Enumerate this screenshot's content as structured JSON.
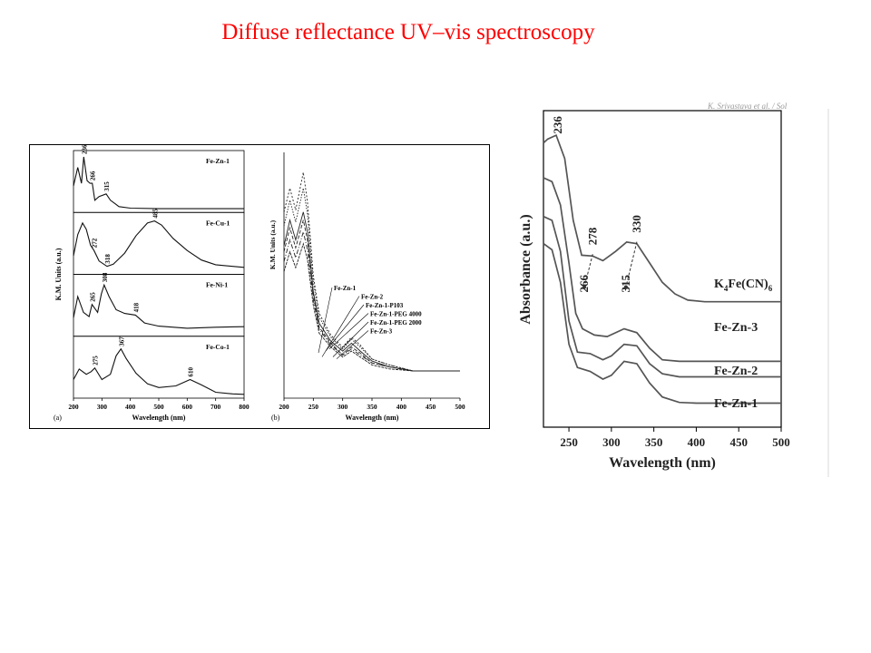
{
  "slide": {
    "title": "Diffuse reflectance UV–vis spectroscopy"
  },
  "right_header_fragment": "K. Srivastava et al. / Sol",
  "chart_data": [
    {
      "type": "line",
      "panel": "(a)",
      "xlabel": "Wavelength (nm)",
      "ylabel": "K.M. Units (a.u.)",
      "xlim": [
        200,
        800
      ],
      "xticks": [
        200,
        300,
        400,
        500,
        600,
        700,
        800
      ],
      "grid": false,
      "subplots": [
        {
          "name": "Fe-Zn-1",
          "x": [
            200,
            215,
            228,
            236,
            248,
            258,
            266,
            275,
            290,
            315,
            330,
            360,
            400,
            500,
            600,
            700,
            800
          ],
          "y": [
            0.45,
            0.8,
            0.5,
            1.0,
            0.55,
            0.5,
            0.5,
            0.18,
            0.25,
            0.3,
            0.18,
            0.06,
            0.03,
            0.02,
            0.02,
            0.02,
            0.02
          ],
          "peaks": [
            236,
            266,
            315
          ]
        },
        {
          "name": "Fe-Cu-1",
          "x": [
            200,
            215,
            232,
            245,
            260,
            272,
            290,
            318,
            340,
            380,
            420,
            460,
            485,
            510,
            550,
            600,
            650,
            700,
            760,
            800
          ],
          "y": [
            0.3,
            0.7,
            0.92,
            0.8,
            0.5,
            0.4,
            0.2,
            0.1,
            0.14,
            0.35,
            0.68,
            0.92,
            0.96,
            0.88,
            0.63,
            0.4,
            0.22,
            0.13,
            0.1,
            0.08
          ],
          "peaks": [
            272,
            318,
            485
          ]
        },
        {
          "name": "Fe-Ni-1",
          "x": [
            200,
            215,
            235,
            255,
            265,
            285,
            298,
            308,
            325,
            350,
            380,
            418,
            450,
            500,
            600,
            700,
            800
          ],
          "y": [
            0.3,
            0.7,
            0.4,
            0.32,
            0.55,
            0.4,
            0.75,
            0.92,
            0.7,
            0.45,
            0.38,
            0.35,
            0.2,
            0.14,
            0.1,
            0.12,
            0.13
          ],
          "peaks": [
            265,
            308,
            418
          ]
        },
        {
          "name": "Fe-Co-1",
          "x": [
            200,
            220,
            245,
            262,
            275,
            300,
            330,
            350,
            367,
            385,
            420,
            460,
            500,
            560,
            610,
            650,
            700,
            760,
            800
          ],
          "y": [
            0.3,
            0.5,
            0.4,
            0.45,
            0.52,
            0.3,
            0.4,
            0.75,
            0.88,
            0.7,
            0.42,
            0.22,
            0.15,
            0.18,
            0.3,
            0.2,
            0.06,
            0.03,
            0.02
          ],
          "peaks": [
            275,
            367,
            610
          ]
        }
      ]
    },
    {
      "type": "line",
      "panel": "(b)",
      "xlabel": "Wavelength (nm)",
      "ylabel": "K.M. Units (a.u.)",
      "xlim": [
        200,
        500
      ],
      "xticks": [
        200,
        250,
        300,
        350,
        400,
        450,
        500
      ],
      "grid": false,
      "series": [
        {
          "name": "Fe-Zn-1",
          "x": [
            200,
            210,
            220,
            233,
            240,
            250,
            260,
            280,
            300,
            315,
            330,
            350,
            380,
            420,
            500
          ],
          "y": [
            0.63,
            0.76,
            0.66,
            0.8,
            0.7,
            0.4,
            0.24,
            0.15,
            0.1,
            0.14,
            0.1,
            0.05,
            0.02,
            0.0,
            0.0
          ]
        },
        {
          "name": "Fe-Zn-2",
          "x": [
            200,
            210,
            220,
            233,
            240,
            250,
            260,
            280,
            300,
            315,
            330,
            350,
            380,
            420,
            500
          ],
          "y": [
            0.6,
            0.72,
            0.62,
            0.76,
            0.66,
            0.38,
            0.22,
            0.14,
            0.08,
            0.12,
            0.09,
            0.04,
            0.02,
            0.0,
            0.0
          ]
        },
        {
          "name": "Fe-Zn-1-P103",
          "x": [
            200,
            210,
            220,
            233,
            240,
            250,
            260,
            280,
            300,
            315,
            330,
            350,
            380,
            420,
            500
          ],
          "y": [
            0.73,
            0.86,
            0.75,
            0.92,
            0.79,
            0.45,
            0.27,
            0.17,
            0.11,
            0.16,
            0.12,
            0.06,
            0.03,
            0.0,
            0.0
          ]
        },
        {
          "name": "Fe-Zn-1-PEG 4000",
          "x": [
            200,
            210,
            220,
            233,
            240,
            250,
            260,
            280,
            300,
            315,
            330,
            350,
            380,
            420,
            500
          ],
          "y": [
            0.8,
            0.92,
            0.81,
            1.0,
            0.85,
            0.48,
            0.29,
            0.18,
            0.12,
            0.17,
            0.13,
            0.06,
            0.03,
            0.0,
            0.0
          ]
        },
        {
          "name": "Fe-Zn-1-PEG 2000",
          "x": [
            200,
            210,
            220,
            233,
            240,
            250,
            260,
            280,
            300,
            315,
            330,
            350,
            380,
            420,
            500
          ],
          "y": [
            0.55,
            0.66,
            0.57,
            0.7,
            0.61,
            0.36,
            0.21,
            0.13,
            0.08,
            0.11,
            0.08,
            0.04,
            0.02,
            0.0,
            0.0
          ]
        },
        {
          "name": "Fe-Zn-3",
          "x": [
            200,
            210,
            220,
            233,
            240,
            250,
            260,
            280,
            300,
            315,
            330,
            350,
            380,
            420,
            500
          ],
          "y": [
            0.5,
            0.6,
            0.52,
            0.64,
            0.56,
            0.33,
            0.19,
            0.12,
            0.07,
            0.1,
            0.07,
            0.03,
            0.01,
            0.0,
            0.0
          ]
        }
      ]
    },
    {
      "type": "line",
      "xlabel": "Wavelength (nm)",
      "ylabel": "Absorbance (a.u.)",
      "xlim": [
        220,
        500
      ],
      "xticks": [
        250,
        300,
        350,
        400,
        450,
        500
      ],
      "grid": false,
      "annotations": [
        "236",
        "278",
        "330",
        "266",
        "315"
      ],
      "series": [
        {
          "name": "K4Fe(CN)6",
          "x": [
            220,
            225,
            235,
            245,
            255,
            265,
            278,
            290,
            305,
            318,
            330,
            345,
            360,
            375,
            390,
            410,
            430,
            500
          ],
          "y": [
            4.0,
            4.05,
            4.1,
            3.8,
            3.0,
            2.55,
            2.54,
            2.48,
            2.6,
            2.72,
            2.7,
            2.45,
            2.2,
            2.05,
            1.97,
            1.95,
            1.95,
            1.95
          ]
        },
        {
          "name": "Fe-Zn-3",
          "x": [
            220,
            230,
            240,
            250,
            258,
            266,
            280,
            295,
            315,
            330,
            345,
            360,
            380,
            400,
            500
          ],
          "y": [
            3.55,
            3.5,
            3.2,
            2.45,
            1.8,
            1.6,
            1.52,
            1.5,
            1.6,
            1.55,
            1.35,
            1.2,
            1.18,
            1.18,
            1.18
          ]
        },
        {
          "name": "Fe-Zn-2",
          "x": [
            220,
            230,
            240,
            250,
            260,
            275,
            290,
            300,
            315,
            330,
            345,
            360,
            380,
            400,
            500
          ],
          "y": [
            3.05,
            3.0,
            2.6,
            1.7,
            1.3,
            1.28,
            1.2,
            1.25,
            1.4,
            1.38,
            1.15,
            1.02,
            0.98,
            0.98,
            0.98
          ]
        },
        {
          "name": "Fe-Zn-1",
          "x": [
            220,
            230,
            240,
            250,
            260,
            275,
            290,
            300,
            315,
            330,
            345,
            360,
            380,
            400,
            500
          ],
          "y": [
            2.7,
            2.62,
            2.2,
            1.4,
            1.1,
            1.05,
            0.95,
            1.0,
            1.18,
            1.15,
            0.9,
            0.72,
            0.65,
            0.64,
            0.64
          ]
        }
      ]
    }
  ]
}
